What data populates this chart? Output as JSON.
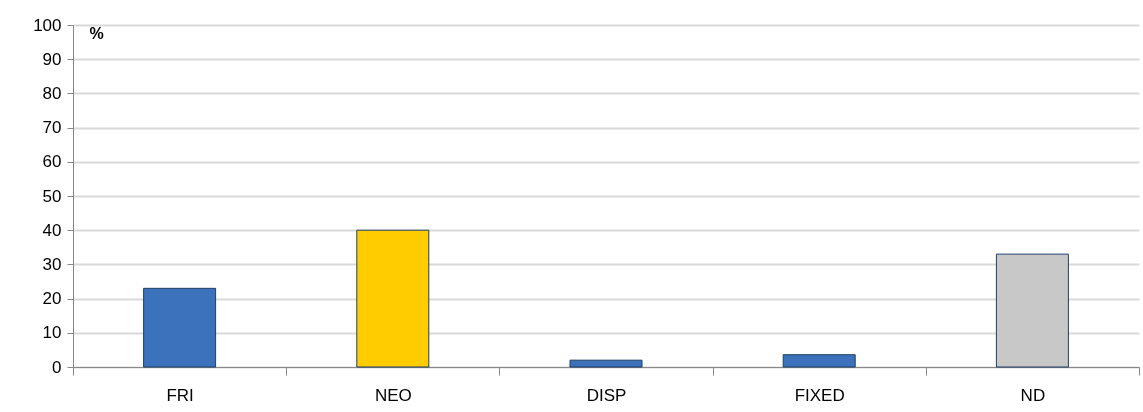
{
  "chart_data": {
    "type": "bar",
    "ylabel": "%",
    "categories": [
      "FRI",
      "NEO",
      "DISP",
      "FIXED",
      "ND"
    ],
    "values": [
      23,
      40,
      2,
      3.6,
      33
    ],
    "colors": [
      "#3b72bb",
      "#ffcc00",
      "#3b72bb",
      "#3b72bb",
      "#c8c8c8"
    ],
    "ylim": [
      0,
      100
    ],
    "yticks": [
      0,
      10,
      20,
      30,
      40,
      50,
      60,
      70,
      80,
      90,
      100
    ],
    "grid": "y",
    "legend": false
  }
}
